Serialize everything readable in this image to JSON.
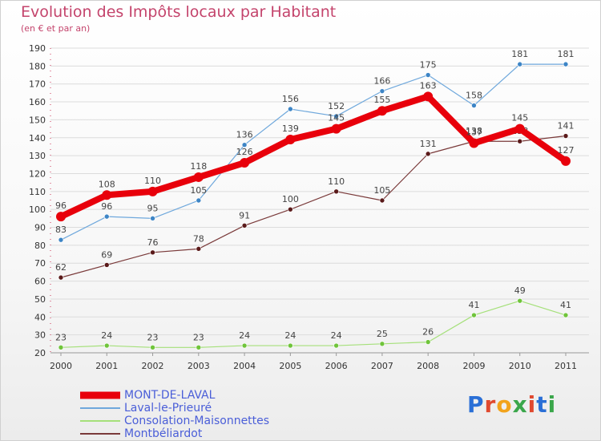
{
  "header": {
    "title": "Evolution des Impôts locaux par Habitant",
    "subtitle": "(en € et par an)"
  },
  "logo": {
    "text": "Proxiti",
    "letter_colors": [
      "#2a6fd6",
      "#e0492f",
      "#f2a31b",
      "#3aa64a",
      "#e0492f",
      "#2a6fd6",
      "#3aa64a"
    ]
  },
  "chart_data": {
    "type": "line",
    "title": "Evolution des Impôts locaux par Habitant",
    "subtitle": "(en € et par an)",
    "xlabel": "",
    "ylabel": "",
    "categories": [
      "2000",
      "2001",
      "2002",
      "2003",
      "2004",
      "2005",
      "2006",
      "2007",
      "2008",
      "2009",
      "2010",
      "2011"
    ],
    "ylim": [
      20,
      190
    ],
    "yticks": [
      20,
      30,
      40,
      50,
      60,
      70,
      80,
      90,
      100,
      110,
      120,
      130,
      140,
      150,
      160,
      170,
      180,
      190
    ],
    "grid": "horizontal",
    "legend_position": "bottom",
    "series": [
      {
        "name": "MONT-DE-LAVAL",
        "color": "#e8000b",
        "point_color": "#e8000b",
        "emphasis": true,
        "values": [
          96,
          108,
          110,
          118,
          126,
          139,
          145,
          155,
          163,
          137,
          145,
          127
        ]
      },
      {
        "name": "Laval-le-Prieuré",
        "color": "#6fa8dc",
        "point_color": "#3d85c6",
        "values": [
          83,
          96,
          95,
          105,
          136,
          156,
          152,
          166,
          175,
          158,
          181,
          181
        ]
      },
      {
        "name": "Consolation-Maisonnettes",
        "color": "#a5e07a",
        "point_color": "#6fc43a",
        "values": [
          23,
          24,
          23,
          23,
          24,
          24,
          24,
          25,
          26,
          41,
          49,
          41
        ]
      },
      {
        "name": "Montbéliardot",
        "color": "#7a3a3a",
        "point_color": "#5a1a1a",
        "values": [
          62,
          69,
          76,
          78,
          91,
          100,
          110,
          105,
          131,
          138,
          138,
          141
        ]
      }
    ]
  }
}
